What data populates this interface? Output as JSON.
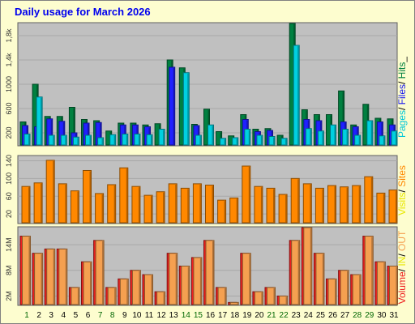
{
  "title": "Daily usage for March 2026",
  "chart_data": [
    {
      "type": "bar",
      "categories": [
        "1",
        "2",
        "3",
        "4",
        "5",
        "6",
        "7",
        "8",
        "9",
        "10",
        "11",
        "12",
        "13",
        "14",
        "15",
        "16",
        "17",
        "18",
        "19",
        "20",
        "21",
        "22",
        "23",
        "24",
        "25",
        "26",
        "27",
        "28",
        "29",
        "30",
        "31"
      ],
      "ylim": [
        0,
        2000
      ],
      "yticks": [
        "200",
        "600",
        "1000",
        "1,4k",
        "1,8k"
      ],
      "ytick_values": [
        200,
        600,
        1000,
        1400,
        1800
      ],
      "series": [
        {
          "name": "Hits",
          "color": "#008040",
          "values": [
            380,
            1000,
            470,
            470,
            620,
            420,
            400,
            230,
            360,
            360,
            330,
            350,
            1400,
            1270,
            340,
            590,
            220,
            150,
            500,
            260,
            270,
            160,
            2000,
            580,
            500,
            500,
            890,
            330,
            670,
            440,
            430
          ]
        },
        {
          "name": "Files",
          "color": "#2020ff",
          "values": [
            320,
            300,
            430,
            390,
            200,
            360,
            370,
            0,
            330,
            330,
            300,
            0,
            1280,
            0,
            320,
            0,
            0,
            0,
            420,
            220,
            240,
            0,
            0,
            420,
            400,
            0,
            380,
            300,
            0,
            380,
            330
          ]
        },
        {
          "name": "Pages",
          "color": "#00d0e0",
          "values": [
            180,
            790,
            160,
            160,
            130,
            160,
            120,
            170,
            180,
            180,
            170,
            260,
            0,
            1190,
            160,
            330,
            110,
            120,
            260,
            160,
            140,
            110,
            1640,
            270,
            230,
            330,
            260,
            160,
            400,
            150,
            230
          ]
        }
      ],
      "labels": [
        "Pages",
        "/",
        "Files",
        "/",
        "Hits",
        "_"
      ],
      "label_colors": [
        "#00c8d8",
        "#000000",
        "#1818f0",
        "#000000",
        "#008040",
        "#000000"
      ]
    },
    {
      "type": "bar",
      "categories": [
        "1",
        "2",
        "3",
        "4",
        "5",
        "6",
        "7",
        "8",
        "9",
        "10",
        "11",
        "12",
        "13",
        "14",
        "15",
        "16",
        "17",
        "18",
        "19",
        "20",
        "21",
        "22",
        "23",
        "24",
        "25",
        "26",
        "27",
        "28",
        "29",
        "30",
        "31"
      ],
      "ylim": [
        0,
        150
      ],
      "yticks": [
        "20",
        "60",
        "100",
        "140"
      ],
      "ytick_values": [
        20,
        60,
        100,
        140
      ],
      "series": [
        {
          "name": "Sites",
          "color": "#ff8800",
          "values": [
            82,
            90,
            141,
            88,
            72,
            118,
            66,
            86,
            124,
            82,
            62,
            70,
            88,
            78,
            88,
            85,
            51,
            56,
            128,
            82,
            78,
            64,
            100,
            88,
            78,
            84,
            81,
            84,
            104,
            67,
            74
          ]
        }
      ],
      "labels": [
        "Visits",
        "/",
        "Sites"
      ],
      "label_colors": [
        "#e8e800",
        "#000000",
        "#ff8800"
      ]
    },
    {
      "type": "bar",
      "categories": [
        "1",
        "2",
        "3",
        "4",
        "5",
        "6",
        "7",
        "8",
        "9",
        "10",
        "11",
        "12",
        "13",
        "14",
        "15",
        "16",
        "17",
        "18",
        "19",
        "20",
        "21",
        "22",
        "23",
        "24",
        "25",
        "26",
        "27",
        "28",
        "29",
        "30",
        "31"
      ],
      "ylim": [
        0,
        18
      ],
      "yticks": [
        "2M",
        "8M",
        "14M"
      ],
      "ytick_values": [
        2,
        8,
        14
      ],
      "series": [
        {
          "name": "Volume",
          "color": "#ee2020",
          "values": [
            16,
            12,
            13,
            13,
            4,
            10,
            15,
            4,
            6,
            8,
            7,
            3,
            12,
            9,
            11,
            15,
            4,
            0.5,
            12,
            3,
            4,
            2,
            15,
            18,
            12,
            6,
            8,
            7,
            16,
            10,
            9
          ]
        },
        {
          "name": "OUT",
          "color": "#f5a050",
          "values": [
            16,
            12,
            13,
            13,
            4,
            10,
            15,
            4,
            6,
            8,
            7,
            3,
            12,
            9,
            11,
            15,
            4,
            0.5,
            12,
            3,
            4,
            2,
            15,
            18,
            12,
            6,
            8,
            7,
            16,
            10,
            9
          ]
        }
      ],
      "labels": [
        "Volume",
        "/",
        "IN",
        "/",
        "OUT"
      ],
      "label_colors": [
        "#ee2020",
        "#000000",
        "#e8e800",
        "#000000",
        "#f5a050"
      ]
    }
  ],
  "day_colors": [
    "#006600",
    "#000000",
    "#000000",
    "#000000",
    "#000000",
    "#000000",
    "#006600",
    "#006600",
    "#000000",
    "#000000",
    "#000000",
    "#000000",
    "#000000",
    "#006600",
    "#006600",
    "#000000",
    "#000000",
    "#000000",
    "#000000",
    "#000000",
    "#006600",
    "#006600",
    "#000000",
    "#000000",
    "#000000",
    "#000000",
    "#000000",
    "#006600",
    "#006600",
    "#000000",
    "#000000"
  ]
}
